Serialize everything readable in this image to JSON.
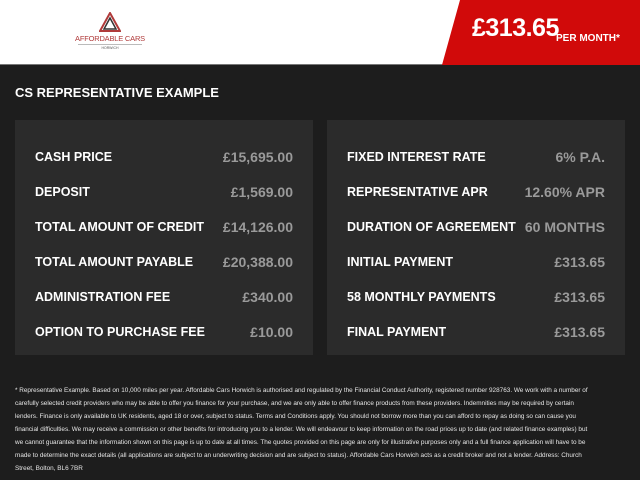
{
  "header": {
    "logo_text": "AFFORDABLE CARS",
    "logo_sub": "HORWICH",
    "price": "£313.65",
    "per_month": "PER MONTH*",
    "accent": "#d10a0a"
  },
  "section_title": "CS REPRESENTATIVE EXAMPLE",
  "left": [
    {
      "label": "CASH PRICE",
      "value": "£15,695.00"
    },
    {
      "label": "DEPOSIT",
      "value": "£1,569.00"
    },
    {
      "label": "TOTAL AMOUNT OF CREDIT",
      "value": "£14,126.00"
    },
    {
      "label": "TOTAL AMOUNT PAYABLE",
      "value": "£20,388.00"
    },
    {
      "label": "ADMINISTRATION FEE",
      "value": "£340.00"
    },
    {
      "label": "OPTION TO PURCHASE FEE",
      "value": "£10.00"
    }
  ],
  "right": [
    {
      "label": "FIXED INTEREST RATE",
      "value": "6% P.A."
    },
    {
      "label": "REPRESENTATIVE APR",
      "value": "12.60% APR"
    },
    {
      "label": "DURATION OF AGREEMENT",
      "value": "60 MONTHS"
    },
    {
      "label": "INITIAL PAYMENT",
      "value": "£313.65"
    },
    {
      "label": "58 MONTHLY PAYMENTS",
      "value": "£313.65"
    },
    {
      "label": "FINAL PAYMENT",
      "value": "£313.65"
    }
  ],
  "footnote": "* Representative Example. Based on 10,000 miles per year. Affordable Cars Horwich is authorised and regulated by the Financial Conduct Authority, registered number 928763. We work with a number of carefully selected credit providers who may be able to offer you finance for your purchase, and we are only able to offer finance products from these providers. Indemnities may be required by certain lenders. Finance is only available to UK residents, aged 18 or over, subject to status. Terms and Conditions apply. You should not borrow more than you can afford to repay as doing so can cause you financial difficulties. We may receive a commission or other benefits for introducing you to a lender. We will endeavour to keep information on the road prices up to date (and related finance examples) but we cannot guarantee that the information shown on this page is up to date at all times. The quotes provided on this page are only for illustrative purposes only and a full finance application will have to be made to determine the exact details (all applications are subject to an underwriting decision and are subject to status). Affordable Cars Horwich acts as a credit broker and not a lender. Address: Church Street, Bolton, BL6 7BR"
}
